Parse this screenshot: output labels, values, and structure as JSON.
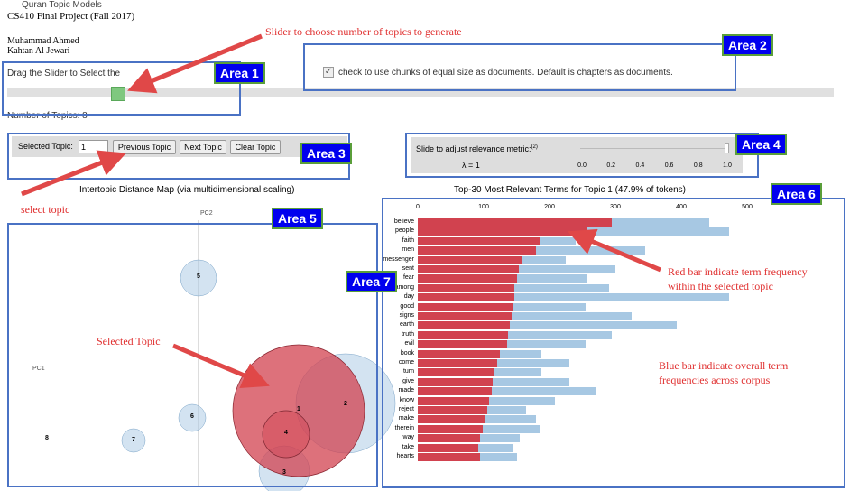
{
  "app": {
    "legend": "Quran Topic Models",
    "course": "CS410 Final Project (Fall 2017)",
    "author1": "Muhammad Ahmed",
    "author2": "Kahtan Al Jewari"
  },
  "slider": {
    "label": "Drag the Slider to Select the",
    "number_label": "Number of Topics: 8"
  },
  "chunks": {
    "checked": true,
    "label": "check to use chunks of equal size as documents. Default is chapters as documents."
  },
  "topic_controls": {
    "selected_label": "Selected Topic:",
    "selected_value": "1",
    "prev": "Previous Topic",
    "next": "Next Topic",
    "clear": "Clear Topic"
  },
  "relevance": {
    "label": "Slide to adjust relevance metric:",
    "sup": "(2)",
    "lambda": "λ = 1",
    "ticks": [
      "0.0",
      "0.2",
      "0.4",
      "0.6",
      "0.8",
      "1.0"
    ]
  },
  "map": {
    "title": "Intertopic Distance Map (via multidimensional scaling)",
    "pc1": "PC1",
    "pc2": "PC2",
    "topics": [
      "1",
      "2",
      "3",
      "4",
      "5",
      "6",
      "7",
      "8"
    ]
  },
  "annotations": {
    "slider": "Slider to choose number of topics to generate",
    "select_topic": "select topic",
    "selected_topic": "Selected Topic",
    "red_bar": "Red bar indicate term frequency within the selected topic",
    "blue_bar": "Blue bar indicate overall term frequencies across corpus"
  },
  "areas": [
    "Area 1",
    "Area 2",
    "Area 3",
    "Area 4",
    "Area 5",
    "Area 6",
    "Area 7"
  ],
  "colors": {
    "red_bar": "#d1424f",
    "blue_bar": "#a7c8e3",
    "area_label_bg": "#0000ee",
    "area_border": "#4a72c4",
    "annotation": "#e03030"
  },
  "chart_data": {
    "type": "bar",
    "title": "Top-30 Most Relevant Terms for Topic 1 (47.9% of tokens)",
    "xticks": [
      "0",
      "100",
      "200",
      "300",
      "400",
      "500"
    ],
    "xlim": [
      0,
      520
    ],
    "categories": [
      "believe",
      "people",
      "faith",
      "men",
      "messenger",
      "sent",
      "fear",
      "among",
      "day",
      "good",
      "signs",
      "earth",
      "truth",
      "evil",
      "book",
      "come",
      "turn",
      "give",
      "made",
      "know",
      "reject",
      "make",
      "therein",
      "way",
      "take",
      "hearts"
    ],
    "series": [
      {
        "role": "overall",
        "values": [
          442,
          472,
          240,
          345,
          225,
          300,
          258,
          290,
          472,
          255,
          325,
          393,
          295,
          255,
          188,
          230,
          188,
          230,
          270,
          208,
          165,
          180,
          185,
          155,
          145,
          150
        ]
      },
      {
        "role": "topic",
        "values": [
          295,
          258,
          185,
          180,
          158,
          153,
          150,
          147,
          146,
          145,
          143,
          140,
          137,
          135,
          125,
          120,
          115,
          114,
          112,
          108,
          105,
          103,
          98,
          95,
          92,
          95
        ]
      }
    ]
  }
}
